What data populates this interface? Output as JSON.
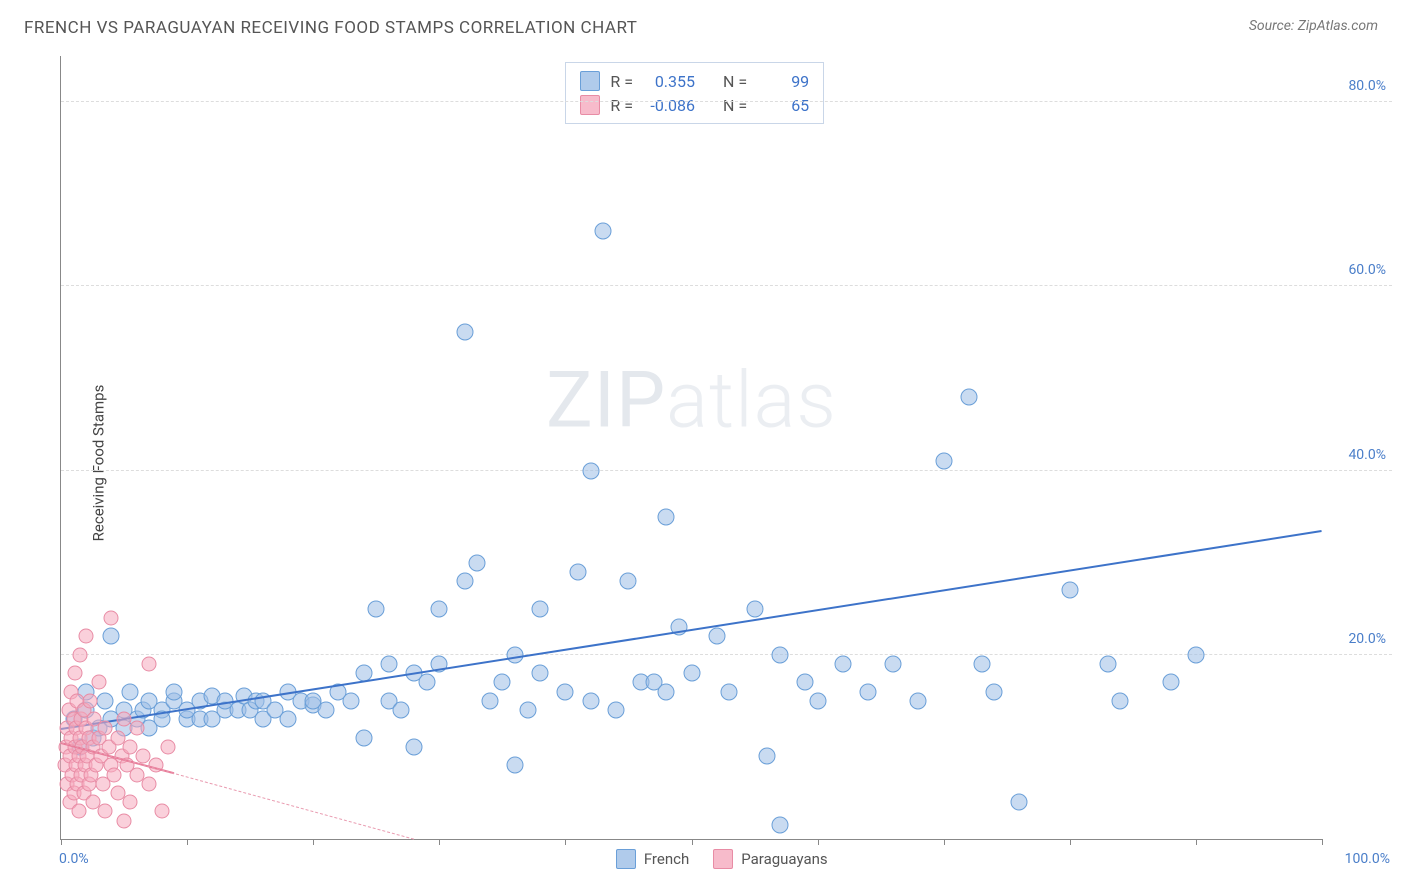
{
  "header": {
    "title": "FRENCH VS PARAGUAYAN RECEIVING FOOD STAMPS CORRELATION CHART",
    "source": "Source: ZipAtlas.com"
  },
  "ylabel": "Receiving Food Stamps",
  "watermark": {
    "bold": "ZIP",
    "thin": "atlas"
  },
  "chart": {
    "type": "scatter",
    "xlim": [
      0,
      100
    ],
    "ylim": [
      0,
      85
    ],
    "y_ticks": [
      20,
      40,
      60,
      80
    ],
    "y_tick_labels": [
      "20.0%",
      "40.0%",
      "60.0%",
      "80.0%"
    ],
    "x_ticks": [
      0,
      10,
      20,
      30,
      40,
      50,
      60,
      70,
      80,
      90,
      100
    ],
    "x_origin_label": "0.0%",
    "x_max_label": "100.0%",
    "background_color": "#ffffff",
    "grid_color": "#dddddd",
    "axis_color": "#888888",
    "marker_radius_blue": 8.5,
    "marker_radius_pink": 7.5,
    "colors": {
      "blue_fill": "rgba(156,190,230,0.55)",
      "blue_stroke": "#6a9fd8",
      "pink_fill": "rgba(245,170,190,0.55)",
      "pink_stroke": "#e88ca5",
      "trend_blue": "#3d73c9",
      "trend_pink": "#e87a98",
      "tick_label": "#4a7ec9"
    },
    "series": [
      {
        "name": "French",
        "color_key": "blue",
        "trend": {
          "x1": 0,
          "y1": 12.0,
          "x2": 100,
          "y2": 33.5,
          "style": "solid"
        },
        "points": [
          [
            1,
            13
          ],
          [
            1.5,
            10
          ],
          [
            2,
            14
          ],
          [
            2,
            16
          ],
          [
            2.5,
            11
          ],
          [
            3,
            12
          ],
          [
            3.5,
            15
          ],
          [
            4,
            13
          ],
          [
            4,
            22
          ],
          [
            5,
            14
          ],
          [
            5,
            12
          ],
          [
            5.5,
            16
          ],
          [
            6,
            13
          ],
          [
            6.5,
            14
          ],
          [
            7,
            15
          ],
          [
            7,
            12
          ],
          [
            8,
            14
          ],
          [
            8,
            13
          ],
          [
            9,
            15
          ],
          [
            9,
            16
          ],
          [
            10,
            13
          ],
          [
            10,
            14
          ],
          [
            11,
            15
          ],
          [
            11,
            13
          ],
          [
            12,
            15.5
          ],
          [
            12,
            13
          ],
          [
            13,
            14
          ],
          [
            13,
            15
          ],
          [
            14,
            14
          ],
          [
            14.5,
            15.5
          ],
          [
            15,
            14
          ],
          [
            15.5,
            15
          ],
          [
            16,
            13
          ],
          [
            16,
            15
          ],
          [
            17,
            14
          ],
          [
            18,
            16
          ],
          [
            18,
            13
          ],
          [
            19,
            15
          ],
          [
            20,
            14.5
          ],
          [
            20,
            15
          ],
          [
            21,
            14
          ],
          [
            22,
            16
          ],
          [
            23,
            15
          ],
          [
            24,
            18
          ],
          [
            24,
            11
          ],
          [
            25,
            25
          ],
          [
            26,
            19
          ],
          [
            26,
            15
          ],
          [
            27,
            14
          ],
          [
            28,
            18
          ],
          [
            28,
            10
          ],
          [
            29,
            17
          ],
          [
            30,
            19
          ],
          [
            30,
            25
          ],
          [
            32,
            55
          ],
          [
            32,
            28
          ],
          [
            33,
            30
          ],
          [
            34,
            15
          ],
          [
            35,
            17
          ],
          [
            36,
            20
          ],
          [
            36,
            8
          ],
          [
            37,
            14
          ],
          [
            38,
            18
          ],
          [
            38,
            25
          ],
          [
            40,
            16
          ],
          [
            41,
            29
          ],
          [
            42,
            40
          ],
          [
            42,
            15
          ],
          [
            43,
            66
          ],
          [
            44,
            14
          ],
          [
            45,
            28
          ],
          [
            46,
            17
          ],
          [
            47,
            17
          ],
          [
            48,
            35
          ],
          [
            48,
            16
          ],
          [
            49,
            23
          ],
          [
            50,
            18
          ],
          [
            52,
            22
          ],
          [
            53,
            16
          ],
          [
            55,
            25
          ],
          [
            56,
            9
          ],
          [
            57,
            20
          ],
          [
            57,
            1.5
          ],
          [
            59,
            17
          ],
          [
            60,
            15
          ],
          [
            62,
            19
          ],
          [
            64,
            16
          ],
          [
            66,
            19
          ],
          [
            68,
            15
          ],
          [
            70,
            41
          ],
          [
            72,
            48
          ],
          [
            73,
            19
          ],
          [
            74,
            16
          ],
          [
            76,
            4
          ],
          [
            80,
            27
          ],
          [
            83,
            19
          ],
          [
            84,
            15
          ],
          [
            88,
            17
          ],
          [
            90,
            20
          ]
        ]
      },
      {
        "name": "Paraguayans",
        "color_key": "pink",
        "trend": {
          "x1": 0,
          "y1": 10.5,
          "x2": 28,
          "y2": 0,
          "style": "dashed",
          "solid_portion": {
            "x1": 0,
            "y1": 10.5,
            "x2": 9,
            "y2": 7.2
          }
        },
        "points": [
          [
            0.3,
            8
          ],
          [
            0.4,
            10
          ],
          [
            0.5,
            12
          ],
          [
            0.5,
            6
          ],
          [
            0.6,
            14
          ],
          [
            0.7,
            9
          ],
          [
            0.7,
            4
          ],
          [
            0.8,
            11
          ],
          [
            0.8,
            16
          ],
          [
            0.9,
            7
          ],
          [
            1.0,
            13
          ],
          [
            1.0,
            5
          ],
          [
            1.1,
            10
          ],
          [
            1.1,
            18
          ],
          [
            1.2,
            8
          ],
          [
            1.2,
            12
          ],
          [
            1.3,
            6
          ],
          [
            1.3,
            15
          ],
          [
            1.4,
            9
          ],
          [
            1.4,
            3
          ],
          [
            1.5,
            11
          ],
          [
            1.5,
            20
          ],
          [
            1.6,
            7
          ],
          [
            1.6,
            13
          ],
          [
            1.7,
            10
          ],
          [
            1.8,
            5
          ],
          [
            1.8,
            14
          ],
          [
            1.9,
            8
          ],
          [
            2.0,
            12
          ],
          [
            2.0,
            22
          ],
          [
            2.1,
            9
          ],
          [
            2.2,
            6
          ],
          [
            2.2,
            11
          ],
          [
            2.3,
            15
          ],
          [
            2.4,
            7
          ],
          [
            2.5,
            10
          ],
          [
            2.5,
            4
          ],
          [
            2.6,
            13
          ],
          [
            2.8,
            8
          ],
          [
            3.0,
            11
          ],
          [
            3.0,
            17
          ],
          [
            3.2,
            9
          ],
          [
            3.3,
            6
          ],
          [
            3.5,
            12
          ],
          [
            3.5,
            3
          ],
          [
            3.8,
            10
          ],
          [
            4.0,
            8
          ],
          [
            4.0,
            24
          ],
          [
            4.2,
            7
          ],
          [
            4.5,
            11
          ],
          [
            4.5,
            5
          ],
          [
            4.8,
            9
          ],
          [
            5.0,
            13
          ],
          [
            5.0,
            2
          ],
          [
            5.2,
            8
          ],
          [
            5.5,
            10
          ],
          [
            5.5,
            4
          ],
          [
            6.0,
            7
          ],
          [
            6.0,
            12
          ],
          [
            6.5,
            9
          ],
          [
            7.0,
            6
          ],
          [
            7.0,
            19
          ],
          [
            7.5,
            8
          ],
          [
            8.0,
            3
          ],
          [
            8.5,
            10
          ]
        ]
      }
    ],
    "stats": [
      {
        "color": "blue",
        "r": "0.355",
        "n": "99"
      },
      {
        "color": "pink",
        "r": "-0.086",
        "n": "65"
      }
    ],
    "stats_labels": {
      "r": "R =",
      "n": "N ="
    },
    "legend": [
      {
        "color": "blue",
        "label": "French"
      },
      {
        "color": "pink",
        "label": "Paraguayans"
      }
    ]
  }
}
